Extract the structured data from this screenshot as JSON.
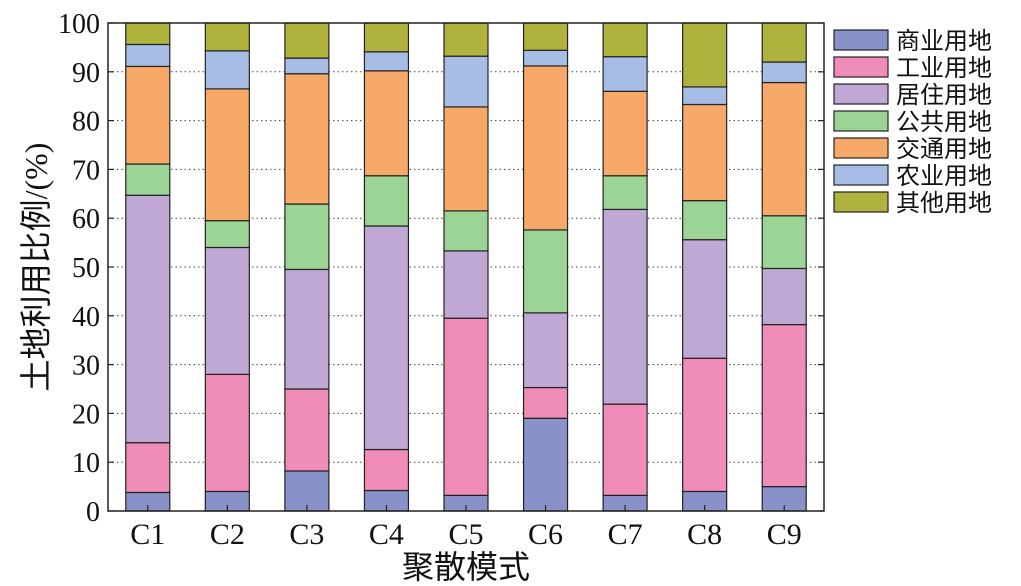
{
  "chart_data": {
    "type": "stacked-bar",
    "categories": [
      "C1",
      "C2",
      "C3",
      "C4",
      "C5",
      "C6",
      "C7",
      "C8",
      "C9"
    ],
    "xlabel": "聚散模式",
    "ylabel": "土地利用比例/(%)",
    "ylim": [
      0,
      100
    ],
    "yticks": [
      0,
      10,
      20,
      30,
      40,
      50,
      60,
      70,
      80,
      90,
      100
    ],
    "grid": "horizontal dotted",
    "legend_position": "right",
    "series": [
      {
        "name": "商业用地",
        "color": "#8892c8",
        "values": [
          3.8,
          4.0,
          8.2,
          4.2,
          3.2,
          19.0,
          3.2,
          4.0,
          5.0
        ]
      },
      {
        "name": "工业用地",
        "color": "#f08cb8",
        "values": [
          10.2,
          24.0,
          16.8,
          8.4,
          36.3,
          6.3,
          18.7,
          27.3,
          33.2
        ]
      },
      {
        "name": "居住用地",
        "color": "#bfa8d4",
        "values": [
          50.7,
          26.0,
          24.5,
          45.8,
          13.8,
          15.3,
          39.9,
          24.3,
          11.5
        ]
      },
      {
        "name": "公共用地",
        "color": "#9bd494",
        "values": [
          6.4,
          5.5,
          13.4,
          10.3,
          8.2,
          17.0,
          6.9,
          8.0,
          10.8
        ]
      },
      {
        "name": "交通用地",
        "color": "#f7a96a",
        "values": [
          20.0,
          27.0,
          26.7,
          21.5,
          21.3,
          33.6,
          17.3,
          19.7,
          27.3
        ]
      },
      {
        "name": "农业用地",
        "color": "#a7bde6",
        "values": [
          4.5,
          7.8,
          3.2,
          3.9,
          10.4,
          3.2,
          7.1,
          3.6,
          4.2
        ]
      },
      {
        "name": "其他用地",
        "color": "#b0b23e",
        "values": [
          4.4,
          5.7,
          7.2,
          5.9,
          6.8,
          5.6,
          6.9,
          13.1,
          8.0
        ]
      }
    ]
  }
}
